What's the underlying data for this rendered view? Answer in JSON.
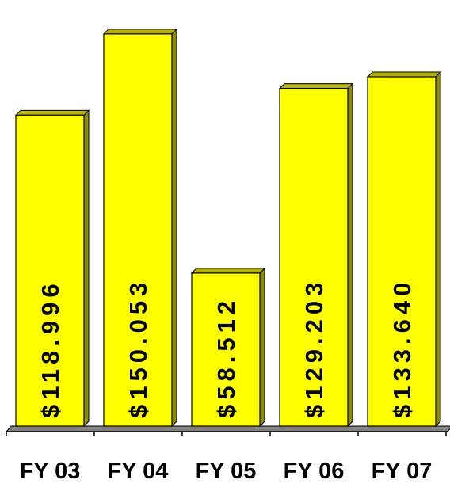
{
  "chart_data": {
    "type": "bar",
    "style": "3d-column",
    "categories": [
      "FY 03",
      "FY 04",
      "FY 05",
      "FY 06",
      "FY 07"
    ],
    "values": [
      118.996,
      150.053,
      58.512,
      129.203,
      133.64
    ],
    "data_labels": [
      "$118.996",
      "$150.053",
      "$58.512",
      "$129.203",
      "$133.640"
    ],
    "ylim": [
      0,
      160
    ],
    "grid": false,
    "legend": "none",
    "title": "",
    "xlabel": "",
    "ylabel": ""
  },
  "colors": {
    "bar_front": "#ffff00",
    "bar_side": "#8c8c00",
    "bar_top": "#b3b300",
    "floor": "#808080",
    "axis": "#000000"
  }
}
